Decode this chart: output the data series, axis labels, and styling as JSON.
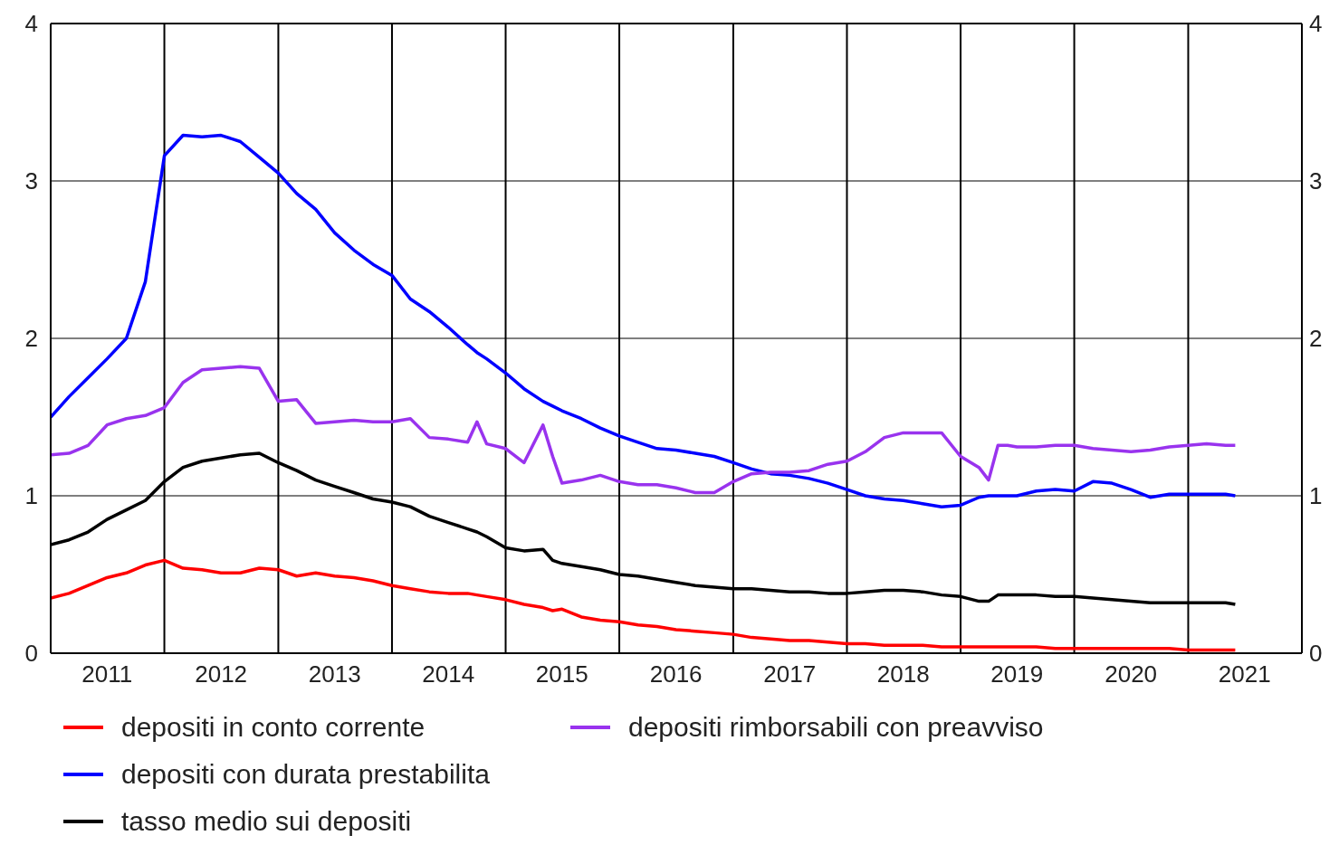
{
  "chart_data": {
    "type": "line",
    "x": [
      "2011-01",
      "2011-03",
      "2011-05",
      "2011-07",
      "2011-09",
      "2011-11",
      "2012-01",
      "2012-03",
      "2012-05",
      "2012-07",
      "2012-09",
      "2012-11",
      "2013-01",
      "2013-03",
      "2013-05",
      "2013-07",
      "2013-09",
      "2013-11",
      "2014-01",
      "2014-03",
      "2014-05",
      "2014-07",
      "2014-09",
      "2014-10",
      "2014-11",
      "2015-01",
      "2015-03",
      "2015-05",
      "2015-06",
      "2015-07",
      "2015-09",
      "2015-11",
      "2016-01",
      "2016-03",
      "2016-05",
      "2016-07",
      "2016-09",
      "2016-11",
      "2017-01",
      "2017-03",
      "2017-05",
      "2017-07",
      "2017-09",
      "2017-11",
      "2018-01",
      "2018-03",
      "2018-05",
      "2018-07",
      "2018-09",
      "2018-11",
      "2019-01",
      "2019-03",
      "2019-04",
      "2019-05",
      "2019-06",
      "2019-07",
      "2019-09",
      "2019-11",
      "2020-01",
      "2020-03",
      "2020-05",
      "2020-07",
      "2020-09",
      "2020-11",
      "2021-01",
      "2021-03",
      "2021-05",
      "2021-06"
    ],
    "series": [
      {
        "name": "depositi in conto corrente",
        "color": "#ff0000",
        "values": [
          0.35,
          0.38,
          0.43,
          0.48,
          0.51,
          0.56,
          0.59,
          0.54,
          0.53,
          0.51,
          0.51,
          0.54,
          0.53,
          0.49,
          0.51,
          0.49,
          0.48,
          0.46,
          0.43,
          0.41,
          0.39,
          0.38,
          0.38,
          0.37,
          0.36,
          0.34,
          0.31,
          0.29,
          0.27,
          0.28,
          0.23,
          0.21,
          0.2,
          0.18,
          0.17,
          0.15,
          0.14,
          0.13,
          0.12,
          0.1,
          0.09,
          0.08,
          0.08,
          0.07,
          0.06,
          0.06,
          0.05,
          0.05,
          0.05,
          0.04,
          0.04,
          0.04,
          0.04,
          0.04,
          0.04,
          0.04,
          0.04,
          0.03,
          0.03,
          0.03,
          0.03,
          0.03,
          0.03,
          0.03,
          0.02,
          0.02,
          0.02,
          0.02
        ]
      },
      {
        "name": "depositi con durata prestabilita",
        "color": "#0000ff",
        "values": [
          1.5,
          1.63,
          1.75,
          1.87,
          2.0,
          2.36,
          3.16,
          3.29,
          3.28,
          3.29,
          3.25,
          3.15,
          3.05,
          2.92,
          2.82,
          2.67,
          2.56,
          2.47,
          2.4,
          2.25,
          2.17,
          2.07,
          1.96,
          1.91,
          1.87,
          1.78,
          1.68,
          1.6,
          1.57,
          1.54,
          1.49,
          1.43,
          1.38,
          1.34,
          1.3,
          1.29,
          1.27,
          1.25,
          1.21,
          1.17,
          1.14,
          1.13,
          1.11,
          1.08,
          1.04,
          1.0,
          0.98,
          0.97,
          0.95,
          0.93,
          0.94,
          0.99,
          1.0,
          1.0,
          1.0,
          1.0,
          1.03,
          1.04,
          1.03,
          1.09,
          1.08,
          1.04,
          0.99,
          1.01,
          1.01,
          1.01,
          1.01,
          1.0
        ]
      },
      {
        "name": "tasso medio sui depositi",
        "color": "#000000",
        "values": [
          0.69,
          0.72,
          0.77,
          0.85,
          0.91,
          0.97,
          1.09,
          1.18,
          1.22,
          1.24,
          1.26,
          1.27,
          1.21,
          1.16,
          1.1,
          1.06,
          1.02,
          0.98,
          0.96,
          0.93,
          0.87,
          0.83,
          0.79,
          0.77,
          0.74,
          0.67,
          0.65,
          0.66,
          0.59,
          0.57,
          0.55,
          0.53,
          0.5,
          0.49,
          0.47,
          0.45,
          0.43,
          0.42,
          0.41,
          0.41,
          0.4,
          0.39,
          0.39,
          0.38,
          0.38,
          0.39,
          0.4,
          0.4,
          0.39,
          0.37,
          0.36,
          0.33,
          0.33,
          0.37,
          0.37,
          0.37,
          0.37,
          0.36,
          0.36,
          0.35,
          0.34,
          0.33,
          0.32,
          0.32,
          0.32,
          0.32,
          0.32,
          0.31
        ]
      },
      {
        "name": "depositi rimborsabili con preavviso",
        "color": "#9933ee",
        "values": [
          1.26,
          1.27,
          1.32,
          1.45,
          1.49,
          1.51,
          1.56,
          1.72,
          1.8,
          1.81,
          1.82,
          1.81,
          1.6,
          1.61,
          1.46,
          1.47,
          1.48,
          1.47,
          1.47,
          1.49,
          1.37,
          1.36,
          1.34,
          1.47,
          1.33,
          1.3,
          1.21,
          1.45,
          1.25,
          1.08,
          1.1,
          1.13,
          1.09,
          1.07,
          1.07,
          1.05,
          1.02,
          1.02,
          1.09,
          1.14,
          1.15,
          1.15,
          1.16,
          1.2,
          1.22,
          1.28,
          1.37,
          1.4,
          1.4,
          1.4,
          1.25,
          1.18,
          1.1,
          1.32,
          1.32,
          1.31,
          1.31,
          1.32,
          1.32,
          1.3,
          1.29,
          1.28,
          1.29,
          1.31,
          1.32,
          1.33,
          1.32,
          1.32
        ]
      }
    ],
    "xlim": [
      "2011-01",
      "2022-01"
    ],
    "xticks": [
      {
        "value": "2011-07",
        "label": "2011"
      },
      {
        "value": "2012-01",
        "label": null
      },
      {
        "value": "2012-07",
        "label": "2012"
      },
      {
        "value": "2013-01",
        "label": null
      },
      {
        "value": "2013-07",
        "label": "2013"
      },
      {
        "value": "2014-01",
        "label": null
      },
      {
        "value": "2014-07",
        "label": "2014"
      },
      {
        "value": "2015-01",
        "label": null
      },
      {
        "value": "2015-07",
        "label": "2015"
      },
      {
        "value": "2016-01",
        "label": null
      },
      {
        "value": "2016-07",
        "label": "2016"
      },
      {
        "value": "2017-01",
        "label": null
      },
      {
        "value": "2017-07",
        "label": "2017"
      },
      {
        "value": "2018-01",
        "label": null
      },
      {
        "value": "2018-07",
        "label": "2018"
      },
      {
        "value": "2019-01",
        "label": null
      },
      {
        "value": "2019-07",
        "label": "2019"
      },
      {
        "value": "2020-01",
        "label": null
      },
      {
        "value": "2020-07",
        "label": "2020"
      },
      {
        "value": "2021-01",
        "label": null
      },
      {
        "value": "2021-07",
        "label": "2021"
      }
    ],
    "ylim": [
      0,
      4
    ],
    "yticks": [
      0,
      1,
      2,
      3,
      4
    ],
    "y2lim": [
      0,
      4
    ],
    "y2ticks": [
      0,
      1,
      2,
      3,
      4
    ],
    "grid": true,
    "legend": "bottom",
    "marker": "none",
    "line_style": "solid"
  }
}
